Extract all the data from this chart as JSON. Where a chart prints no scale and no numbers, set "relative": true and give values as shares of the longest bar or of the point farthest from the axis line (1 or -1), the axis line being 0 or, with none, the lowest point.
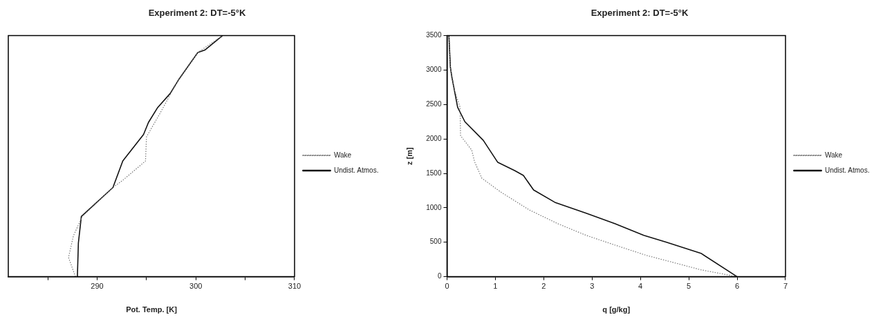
{
  "chart_data": [
    {
      "type": "line",
      "title": "Experiment 2: DT=-5°K",
      "xlabel": "Pot. Temp. [K]",
      "relative": true,
      "xlim": [
        281,
        310
      ],
      "xticks": [
        {
          "value": 285,
          "label": null
        },
        290,
        {
          "value": 295,
          "label": null
        },
        300,
        {
          "value": 305,
          "label": null
        },
        310
      ],
      "legend": "right",
      "marker": "none",
      "grid": false,
      "series": [
        {
          "name": "Wake",
          "color": "#777777",
          "line_style": "dotted",
          "x": [
            287.8,
            287.1,
            287.6,
            288.5,
            291.6,
            292.6,
            294.9,
            295.0,
            296.4,
            297.6,
            298.3,
            300.2,
            302.7
          ],
          "values": [
            0,
            0.08,
            0.17,
            0.25,
            0.37,
            0.4,
            0.48,
            0.58,
            0.68,
            0.77,
            0.82,
            0.93,
            1.0
          ]
        },
        {
          "name": "Undist. Atmos.",
          "color": "#111111",
          "line_style": "solid",
          "x": [
            288.0,
            288.1,
            288.4,
            291.6,
            292.6,
            294.7,
            295.2,
            296.1,
            297.4,
            298.3,
            300.2,
            300.9,
            302.7
          ],
          "values": [
            0,
            0.14,
            0.25,
            0.37,
            0.48,
            0.59,
            0.64,
            0.7,
            0.76,
            0.82,
            0.93,
            0.94,
            1.0
          ]
        }
      ]
    },
    {
      "type": "line",
      "title": "Experiment 2: DT=-5°K",
      "xlabel": "q [g/kg]",
      "ylabel": "z [m]",
      "xlim": [
        0,
        7
      ],
      "xticks": [
        0,
        1,
        2,
        3,
        4,
        5,
        6,
        7
      ],
      "ylim": [
        0,
        3500
      ],
      "yticks": [
        0,
        500,
        1000,
        1500,
        2000,
        2500,
        3000,
        3500
      ],
      "legend": "right",
      "marker": "none",
      "grid": false,
      "series": [
        {
          "name": "Wake",
          "color": "#777777",
          "line_style": "dotted",
          "x": [
            6.0,
            5.25,
            4.66,
            4.12,
            3.47,
            2.88,
            2.29,
            1.7,
            1.11,
            0.72,
            0.57,
            0.51,
            0.31,
            0.28,
            0.27,
            0.16,
            0.07,
            0.04
          ],
          "values": [
            0,
            100,
            210,
            310,
            460,
            600,
            770,
            970,
            1230,
            1430,
            1670,
            1840,
            2020,
            2050,
            2460,
            2700,
            3040,
            3500
          ]
        },
        {
          "name": "Undist. Atmos.",
          "color": "#111111",
          "line_style": "solid",
          "x": [
            6.0,
            5.25,
            4.54,
            4.07,
            3.47,
            2.88,
            2.23,
            1.79,
            1.58,
            1.4,
            1.05,
            0.75,
            0.37,
            0.22,
            0.1,
            0.07,
            0.04
          ],
          "values": [
            0,
            340,
            500,
            600,
            770,
            920,
            1080,
            1260,
            1470,
            1540,
            1660,
            1980,
            2250,
            2460,
            2900,
            3040,
            3500
          ]
        }
      ]
    }
  ]
}
